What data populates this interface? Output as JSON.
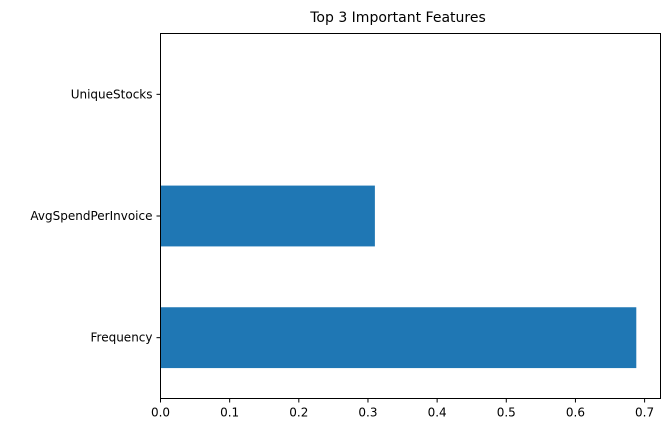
{
  "chart_data": {
    "type": "bar",
    "orientation": "horizontal",
    "title": "Top 3 Important Features",
    "xlabel": "",
    "ylabel": "",
    "categories": [
      "UniqueStocks",
      "AvgSpendPerInvoice",
      "Frequency"
    ],
    "values": [
      0.0,
      0.31,
      0.688
    ],
    "xlim": [
      0,
      0.723
    ],
    "xticks": [
      "0.0",
      "0.1",
      "0.2",
      "0.3",
      "0.4",
      "0.5",
      "0.6",
      "0.7"
    ],
    "bar_color": "#1f77b4",
    "grid": false,
    "legend": false
  }
}
